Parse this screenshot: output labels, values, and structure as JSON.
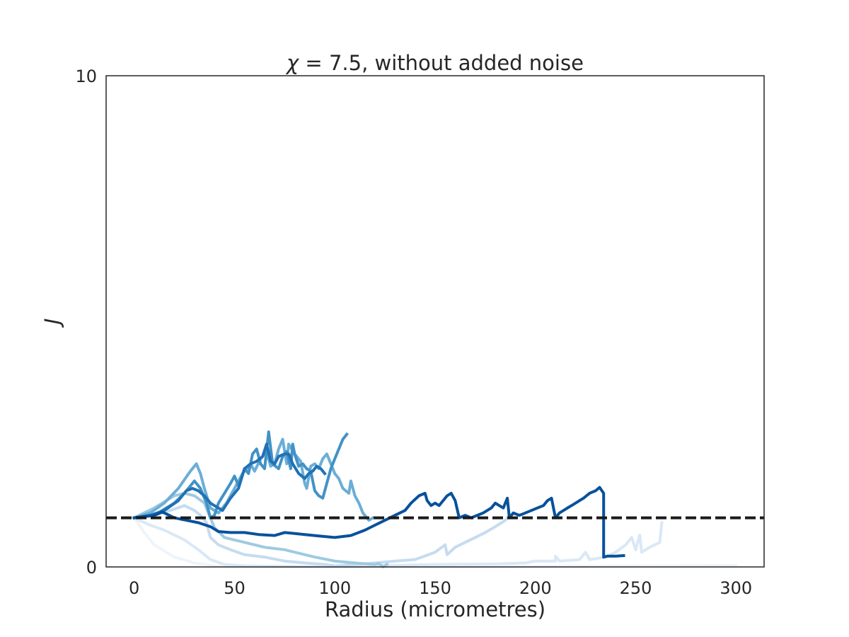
{
  "chart_data": {
    "type": "line",
    "title": "χ = 7.5, without added noise",
    "title_symbol": "χ",
    "title_rest": " = 7.5, without added noise",
    "xlabel": "Radius (micrometres)",
    "ylabel": "J",
    "xlim": [
      -14,
      314
    ],
    "ylim": [
      0,
      10
    ],
    "x_ticks": [
      0,
      50,
      100,
      150,
      200,
      250,
      300
    ],
    "x_tick_labels": [
      "0",
      "50",
      "100",
      "150",
      "200",
      "250",
      "300"
    ],
    "y_ticks": [
      0,
      10
    ],
    "y_tick_labels": [
      "0",
      "10"
    ],
    "grid": false,
    "legend": "none",
    "reference_line": {
      "y": 1.0,
      "style": "dashed",
      "color": "#1a1a1a"
    },
    "series": [
      {
        "color": "#eef4fb",
        "points": [
          [
            0,
            1.0
          ],
          [
            5,
            0.7
          ],
          [
            10,
            0.45
          ],
          [
            20,
            0.2
          ],
          [
            30,
            0.08
          ],
          [
            40,
            0.02
          ],
          [
            60,
            0.0
          ],
          [
            150,
            0.0
          ],
          [
            250,
            0.02
          ],
          [
            300,
            0.03
          ]
        ]
      },
      {
        "color": "#dae8f6",
        "points": [
          [
            0,
            1.0
          ],
          [
            8,
            0.85
          ],
          [
            15,
            0.75
          ],
          [
            25,
            0.55
          ],
          [
            32,
            0.35
          ],
          [
            38,
            0.15
          ],
          [
            45,
            0.05
          ],
          [
            55,
            0.02
          ],
          [
            100,
            0.0
          ],
          [
            150,
            0.05
          ],
          [
            180,
            0.06
          ],
          [
            195,
            0.08
          ],
          [
            200,
            0.12
          ],
          [
            210,
            0.12
          ],
          [
            210,
            0.22
          ],
          [
            212,
            0.12
          ],
          [
            222,
            0.15
          ],
          [
            225,
            0.3
          ],
          [
            227,
            0.15
          ],
          [
            235,
            0.2
          ],
          [
            240,
            0.3
          ],
          [
            245,
            0.45
          ],
          [
            248,
            0.6
          ],
          [
            250,
            0.35
          ],
          [
            252,
            0.65
          ],
          [
            253,
            0.3
          ],
          [
            257,
            0.4
          ],
          [
            262,
            0.5
          ],
          [
            263,
            0.9
          ]
        ]
      },
      {
        "color": "#c6dbef",
        "points": [
          [
            0,
            1.0
          ],
          [
            10,
            1.05
          ],
          [
            18,
            1.15
          ],
          [
            25,
            1.25
          ],
          [
            30,
            1.15
          ],
          [
            33,
            1.05
          ],
          [
            36,
            0.9
          ],
          [
            38,
            0.6
          ],
          [
            42,
            0.45
          ],
          [
            48,
            0.35
          ],
          [
            55,
            0.25
          ],
          [
            65,
            0.2
          ],
          [
            75,
            0.12
          ],
          [
            85,
            0.08
          ],
          [
            95,
            0.05
          ],
          [
            100,
            0.02
          ],
          [
            110,
            0.05
          ],
          [
            120,
            0.08
          ],
          [
            125,
            0.1
          ],
          [
            130,
            0.12
          ],
          [
            140,
            0.15
          ],
          [
            150,
            0.3
          ],
          [
            155,
            0.45
          ],
          [
            156,
            0.25
          ],
          [
            160,
            0.4
          ],
          [
            165,
            0.5
          ],
          [
            170,
            0.6
          ],
          [
            175,
            0.7
          ],
          [
            180,
            0.82
          ],
          [
            185,
            0.95
          ],
          [
            186,
            1.0
          ]
        ]
      },
      {
        "color": "#9ecae1",
        "points": [
          [
            0,
            1.0
          ],
          [
            10,
            1.2
          ],
          [
            20,
            1.45
          ],
          [
            25,
            1.5
          ],
          [
            30,
            1.45
          ],
          [
            35,
            1.3
          ],
          [
            38,
            1.0
          ],
          [
            40,
            0.8
          ],
          [
            45,
            0.6
          ],
          [
            55,
            0.5
          ],
          [
            65,
            0.4
          ],
          [
            75,
            0.35
          ],
          [
            80,
            0.3
          ],
          [
            90,
            0.2
          ],
          [
            100,
            0.12
          ],
          [
            110,
            0.08
          ],
          [
            120,
            0.05
          ],
          [
            122,
            0.07
          ],
          [
            124,
            0.0
          ],
          [
            126,
            0.05
          ]
        ]
      },
      {
        "color": "#6baed6",
        "points": [
          [
            0,
            1.0
          ],
          [
            8,
            1.1
          ],
          [
            15,
            1.3
          ],
          [
            22,
            1.6
          ],
          [
            28,
            1.95
          ],
          [
            31,
            2.1
          ],
          [
            33,
            1.9
          ],
          [
            35,
            1.6
          ],
          [
            38,
            1.2
          ],
          [
            42,
            1.1
          ],
          [
            46,
            1.3
          ],
          [
            50,
            1.6
          ],
          [
            54,
            1.9
          ],
          [
            58,
            2.1
          ],
          [
            60,
            1.95
          ],
          [
            63,
            2.2
          ],
          [
            66,
            2.35
          ],
          [
            68,
            2.05
          ],
          [
            70,
            2.1
          ],
          [
            72,
            2.4
          ],
          [
            74,
            2.6
          ],
          [
            76,
            2.1
          ],
          [
            77,
            2.5
          ],
          [
            80,
            2.3
          ],
          [
            83,
            2.15
          ],
          [
            85,
            1.7
          ],
          [
            86,
            1.6
          ],
          [
            88,
            2.05
          ],
          [
            90,
            2.1
          ],
          [
            92,
            2.0
          ],
          [
            94,
            2.2
          ],
          [
            96,
            2.3
          ],
          [
            98,
            2.1
          ],
          [
            100,
            1.9
          ],
          [
            102,
            1.8
          ],
          [
            104,
            1.6
          ],
          [
            107,
            1.5
          ],
          [
            108,
            1.75
          ],
          [
            110,
            1.45
          ],
          [
            112,
            1.3
          ],
          [
            114,
            1.1
          ],
          [
            117,
            0.95
          ],
          [
            119,
            1.0
          ]
        ]
      },
      {
        "color": "#4292c6",
        "points": [
          [
            0,
            1.0
          ],
          [
            10,
            1.05
          ],
          [
            20,
            1.3
          ],
          [
            25,
            1.5
          ],
          [
            28,
            1.65
          ],
          [
            30,
            1.75
          ],
          [
            33,
            1.6
          ],
          [
            36,
            1.3
          ],
          [
            38,
            1.0
          ],
          [
            40,
            1.05
          ],
          [
            42,
            1.3
          ],
          [
            45,
            1.5
          ],
          [
            48,
            1.7
          ],
          [
            50,
            1.85
          ],
          [
            52,
            1.65
          ],
          [
            55,
            2.0
          ],
          [
            57,
            1.9
          ],
          [
            59,
            2.3
          ],
          [
            61,
            2.4
          ],
          [
            63,
            2.1
          ],
          [
            65,
            2.0
          ],
          [
            67,
            2.75
          ],
          [
            69,
            2.1
          ],
          [
            72,
            2.0
          ],
          [
            74,
            2.25
          ],
          [
            76,
            2.35
          ],
          [
            78,
            2.0
          ],
          [
            79,
            2.5
          ],
          [
            80,
            2.3
          ],
          [
            82,
            2.05
          ],
          [
            84,
            2.1
          ],
          [
            86,
            2.0
          ],
          [
            88,
            1.95
          ],
          [
            90,
            1.55
          ],
          [
            92,
            1.45
          ],
          [
            94,
            1.4
          ],
          [
            96,
            1.7
          ],
          [
            98,
            2.0
          ],
          [
            100,
            2.2
          ],
          [
            102,
            2.4
          ],
          [
            104,
            2.6
          ],
          [
            106,
            2.7
          ]
        ]
      },
      {
        "color": "#2171b5",
        "points": [
          [
            0,
            1.0
          ],
          [
            8,
            1.05
          ],
          [
            15,
            1.15
          ],
          [
            22,
            1.35
          ],
          [
            26,
            1.55
          ],
          [
            29,
            1.6
          ],
          [
            32,
            1.55
          ],
          [
            35,
            1.45
          ],
          [
            38,
            1.3
          ],
          [
            40,
            1.25
          ],
          [
            44,
            1.15
          ],
          [
            48,
            1.4
          ],
          [
            52,
            1.6
          ],
          [
            55,
            2.0
          ],
          [
            58,
            2.1
          ],
          [
            61,
            2.15
          ],
          [
            64,
            2.25
          ],
          [
            66,
            2.5
          ],
          [
            68,
            2.15
          ],
          [
            70,
            2.1
          ],
          [
            72,
            2.25
          ],
          [
            75,
            2.3
          ],
          [
            77,
            2.3
          ],
          [
            79,
            2.1
          ],
          [
            82,
            1.9
          ],
          [
            85,
            1.8
          ],
          [
            87,
            1.9
          ],
          [
            89,
            1.95
          ],
          [
            91,
            2.05
          ],
          [
            93,
            2.0
          ],
          [
            95,
            1.9
          ]
        ]
      },
      {
        "color": "#08519c",
        "points": [
          [
            0,
            1.0
          ],
          [
            10,
            1.05
          ],
          [
            14,
            1.12
          ],
          [
            20,
            1.0
          ],
          [
            26,
            0.95
          ],
          [
            32,
            0.9
          ],
          [
            38,
            0.82
          ],
          [
            42,
            0.72
          ],
          [
            48,
            0.7
          ],
          [
            55,
            0.7
          ],
          [
            62,
            0.66
          ],
          [
            70,
            0.64
          ],
          [
            75,
            0.7
          ],
          [
            80,
            0.68
          ],
          [
            85,
            0.66
          ],
          [
            92,
            0.63
          ],
          [
            100,
            0.6
          ],
          [
            108,
            0.64
          ],
          [
            115,
            0.75
          ],
          [
            120,
            0.85
          ],
          [
            125,
            0.95
          ],
          [
            130,
            1.05
          ],
          [
            135,
            1.15
          ],
          [
            138,
            1.3
          ],
          [
            142,
            1.45
          ],
          [
            145,
            1.5
          ],
          [
            146,
            1.35
          ],
          [
            148,
            1.25
          ],
          [
            150,
            1.3
          ],
          [
            152,
            1.25
          ],
          [
            156,
            1.45
          ],
          [
            158,
            1.5
          ],
          [
            160,
            1.35
          ],
          [
            162,
            1.0
          ],
          [
            165,
            1.05
          ],
          [
            168,
            1.0
          ],
          [
            171,
            1.05
          ],
          [
            174,
            1.1
          ],
          [
            176,
            1.15
          ],
          [
            178,
            1.2
          ],
          [
            180,
            1.3
          ],
          [
            182,
            1.25
          ],
          [
            184,
            1.2
          ],
          [
            186,
            1.4
          ],
          [
            187,
            1.0
          ],
          [
            189,
            1.1
          ],
          [
            192,
            1.05
          ],
          [
            195,
            1.1
          ],
          [
            198,
            1.15
          ],
          [
            201,
            1.2
          ],
          [
            204,
            1.25
          ],
          [
            206,
            1.35
          ],
          [
            208,
            1.4
          ],
          [
            210,
            1.0
          ],
          [
            212,
            1.1
          ],
          [
            214,
            1.15
          ],
          [
            216,
            1.2
          ],
          [
            218,
            1.25
          ],
          [
            220,
            1.3
          ],
          [
            222,
            1.35
          ],
          [
            224,
            1.4
          ],
          [
            227,
            1.5
          ],
          [
            230,
            1.55
          ],
          [
            232,
            1.62
          ],
          [
            234,
            1.5
          ],
          [
            234,
            0.2
          ],
          [
            236,
            0.22
          ],
          [
            240,
            0.22
          ],
          [
            244,
            0.23
          ]
        ]
      }
    ]
  }
}
